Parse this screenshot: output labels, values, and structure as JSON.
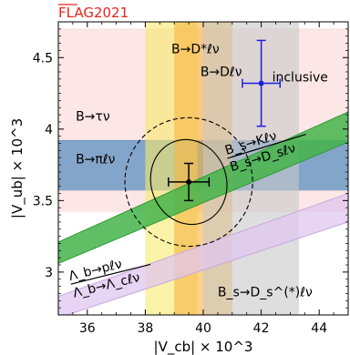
{
  "brand": "FLAG2021",
  "chart_data": {
    "type": "scatter",
    "title": "",
    "xlabel": "|V_cb| × 10^3",
    "ylabel": "|V_ub| × 10^3",
    "xlim": [
      35,
      45
    ],
    "ylim": [
      2.7,
      4.75
    ],
    "xticks": [
      36,
      38,
      40,
      42,
      44
    ],
    "yticks": [
      3.0,
      3.5,
      4.0,
      4.5
    ],
    "xtick_labels": [
      "36",
      "38",
      "40",
      "42",
      "44"
    ],
    "ytick_labels": [
      "3",
      "3.5",
      "4",
      "4.5"
    ],
    "grid": false,
    "horizontal_bands": [
      {
        "name": "B→τν",
        "ymin": 3.42,
        "ymax": 4.7,
        "color": "#fde0e0",
        "label_at": [
          35.6,
          4.06
        ]
      },
      {
        "name": "B→πℓν",
        "ymin": 3.57,
        "ymax": 3.92,
        "color": "#6e99c4",
        "label_at": [
          35.6,
          3.76
        ]
      }
    ],
    "vertical_bands": [
      {
        "name": "B→D*ℓν",
        "xmin": 38.0,
        "xmax": 39.8,
        "color": "#f7e96a",
        "label_at": [
          38.9,
          4.53
        ]
      },
      {
        "name": "B→Dℓν",
        "xmin": 39.0,
        "xmax": 41.0,
        "color": "#f7b441",
        "label_at": [
          39.9,
          4.37
        ]
      },
      {
        "name": "B_s→D_s^(*)ℓν",
        "xmin": 40.0,
        "xmax": 43.3,
        "color": "#c8c8c8",
        "label_at": [
          40.5,
          2.83
        ]
      }
    ],
    "slanted_bands": [
      {
        "name": "B_s→Kℓν / B_s→D_sℓν",
        "lower": [
          [
            35,
            3.06
          ],
          [
            45,
            3.91
          ]
        ],
        "upper": [
          [
            35,
            3.21
          ],
          [
            45,
            4.12
          ]
        ],
        "color": "#44b44a",
        "label_num": "B_s→Kℓν",
        "label_den": "B_s→D_sℓν"
      },
      {
        "name": "Λ_b→pℓν / Λ_b→Λ_cℓν",
        "lower": [
          [
            35,
            2.68
          ],
          [
            45,
            3.35
          ]
        ],
        "upper": [
          [
            35,
            2.83
          ],
          [
            45,
            3.55
          ]
        ],
        "color": "#e0c6ef",
        "label_num": "Λ_b→pℓν",
        "label_den": "Λ_b→Λ_cℓν"
      }
    ],
    "points": [
      {
        "name": "inclusive",
        "x": 42.0,
        "y": 4.32,
        "xerr": 0.65,
        "yerr": 0.3,
        "color": "#1f1fd8"
      },
      {
        "name": "",
        "x": 39.5,
        "y": 3.63,
        "xerr": 0.7,
        "yerr": 0.13,
        "color": "#000000"
      }
    ],
    "ellipses": [
      {
        "style": "solid",
        "cx": 39.5,
        "cy": 3.63,
        "rx": 1.3,
        "ry": 0.3,
        "angle_deg": 18
      },
      {
        "style": "dashed",
        "cx": 39.5,
        "cy": 3.63,
        "rx": 2.2,
        "ry": 0.45,
        "angle_deg": 18
      }
    ]
  }
}
